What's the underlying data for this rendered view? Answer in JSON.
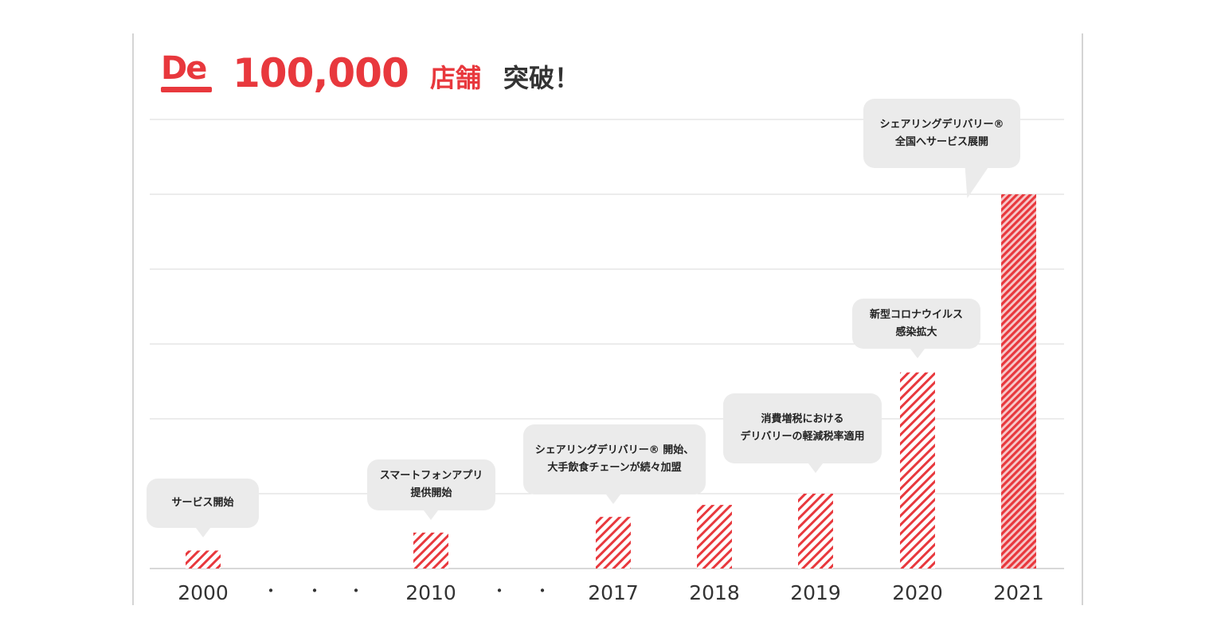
{
  "header": {
    "logo_text": "De",
    "title_number": "100,000",
    "title_unit": "店舗",
    "title_suffix": "突破！"
  },
  "colors": {
    "accent": "#e8383d",
    "callout_bg": "#ebebeb",
    "grid": "#d9d9d9"
  },
  "chart_data": {
    "type": "bar",
    "title": "100,000店舗 突破！",
    "categories": [
      "2000",
      "2010",
      "2017",
      "2018",
      "2019",
      "2020",
      "2021"
    ],
    "values": [
      2.4,
      4.8,
      6.9,
      8.5,
      10.0,
      26.2,
      50.0
    ],
    "ylim": [
      0,
      60
    ],
    "y_axis_labels_shown": false,
    "grid": true,
    "gap_markers": [
      "・",
      "・",
      "・",
      "・",
      "・"
    ],
    "bar_style": "red diagonal hatch; final bar denser",
    "annotations": [
      {
        "category": "2000",
        "lines": [
          "サービス開始"
        ]
      },
      {
        "category": "2010",
        "lines": [
          "スマートフォンアプリ",
          "提供開始"
        ]
      },
      {
        "category": "2017",
        "lines": [
          "シェアリングデリバリー® 開始、",
          "大手飲食チェーンが続々加盟"
        ]
      },
      {
        "category": "2019",
        "lines": [
          "消費増税における",
          "デリバリーの軽減税率適用"
        ]
      },
      {
        "category": "2020",
        "lines": [
          "新型コロナウイルス",
          "感染拡大"
        ]
      },
      {
        "category": "2021",
        "lines": [
          "シェアリングデリバリー®",
          "全国へサービス展開"
        ]
      }
    ]
  }
}
